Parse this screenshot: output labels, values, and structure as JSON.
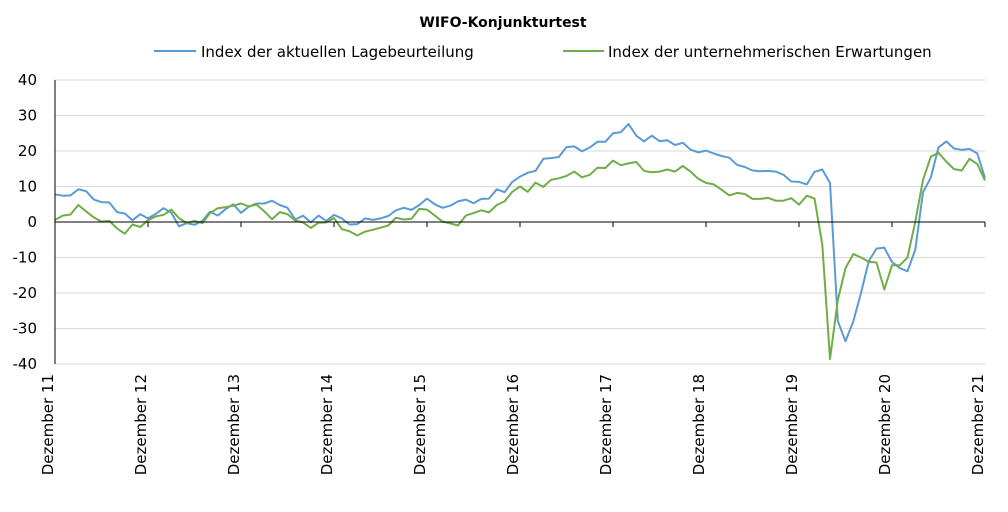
{
  "chart_data": {
    "type": "line",
    "title": "WIFO-Konjunkturtest",
    "xlabel": "",
    "ylabel": "",
    "ylim": [
      -40,
      40
    ],
    "yticks": [
      40,
      30,
      20,
      10,
      0,
      -10,
      -20,
      -30,
      -40
    ],
    "grid": true,
    "legend_position": "top",
    "x_tick_labels": [
      "Dezember 11",
      "Dezember 12",
      "Dezember 13",
      "Dezember 14",
      "Dezember 15",
      "Dezember 16",
      "Dezember 17",
      "Dezember 18",
      "Dezember 19",
      "Dezember 20",
      "Dezember 21"
    ],
    "colors": {
      "lage": "#5b9bd5",
      "erwartungen": "#70ad47",
      "grid": "#d9d9d9",
      "axis": "#000000"
    },
    "series": [
      {
        "name": "Index der aktuellen Lagebeurteilung",
        "values": [
          7.8,
          7.4,
          7.5,
          9.2,
          8.7,
          6.3,
          5.6,
          5.5,
          2.8,
          2.4,
          0.5,
          2.2,
          1.0,
          2.3,
          3.9,
          2.6,
          -1.2,
          -0.3,
          -0.8,
          0.3,
          2.9,
          1.8,
          3.6,
          5.0,
          2.6,
          4.3,
          5.2,
          5.2,
          6.0,
          4.8,
          4.0,
          0.7,
          1.8,
          -0.1,
          1.8,
          0.3,
          2.0,
          1.0,
          -0.7,
          -0.6,
          1.0,
          0.6,
          1.0,
          1.7,
          3.3,
          4.0,
          3.4,
          4.8,
          6.6,
          5.0,
          4.0,
          4.6,
          5.8,
          6.3,
          5.3,
          6.5,
          6.6,
          9.2,
          8.4,
          11.3,
          12.8,
          13.9,
          14.4,
          17.8,
          18.0,
          18.3,
          21.1,
          21.3,
          19.9,
          21.0,
          22.6,
          22.6,
          25.0,
          25.3,
          27.6,
          24.3,
          22.7,
          24.3,
          22.8,
          23.0,
          21.7,
          22.3,
          20.4,
          19.6,
          20.1,
          19.3,
          18.6,
          18.1,
          16.1,
          15.5,
          14.5,
          14.3,
          14.4,
          14.2,
          13.3,
          11.4,
          11.3,
          10.6,
          14.1,
          14.8,
          11.0,
          -27.9,
          -33.6,
          -28.0,
          -20.0,
          -11.0,
          -7.5,
          -7.2,
          -11.3,
          -13.0,
          -13.9,
          -7.8,
          8.4,
          12.5,
          21.0,
          22.7,
          20.7,
          20.3,
          20.6,
          19.3,
          12.4
        ]
      },
      {
        "name": "Index der unternehmerischen Erwartungen",
        "values": [
          0.6,
          1.8,
          2.1,
          4.8,
          3.0,
          1.3,
          0.1,
          0.3,
          -1.8,
          -3.3,
          -0.7,
          -1.4,
          0.5,
          1.6,
          2.0,
          3.5,
          1.1,
          -0.3,
          0.3,
          -0.3,
          2.5,
          3.9,
          4.2,
          4.6,
          5.2,
          4.4,
          4.9,
          3.0,
          0.8,
          2.8,
          2.2,
          0.4,
          -0.1,
          -1.7,
          -0.2,
          -0.1,
          1.1,
          -2.0,
          -2.6,
          -3.8,
          -2.7,
          -2.2,
          -1.6,
          -1.0,
          1.2,
          0.7,
          0.9,
          3.7,
          3.5,
          1.8,
          0.1,
          -0.4,
          -1.0,
          1.8,
          2.5,
          3.3,
          2.7,
          4.8,
          5.8,
          8.5,
          10.0,
          8.5,
          11.1,
          9.9,
          11.9,
          12.3,
          13.0,
          14.2,
          12.6,
          13.3,
          15.3,
          15.2,
          17.3,
          16.0,
          16.5,
          16.9,
          14.4,
          14.0,
          14.2,
          14.8,
          14.2,
          15.8,
          14.2,
          12.2,
          11.0,
          10.6,
          9.1,
          7.5,
          8.2,
          7.9,
          6.5,
          6.5,
          6.8,
          6.0,
          6.0,
          6.7,
          4.9,
          7.4,
          6.6,
          -6.4,
          -38.6,
          -22.0,
          -13.0,
          -9.0,
          -10.0,
          -11.2,
          -11.4,
          -19.0,
          -12.2,
          -12.2,
          -10.0,
          0.1,
          11.8,
          18.4,
          19.5,
          17.0,
          14.9,
          14.5,
          17.8,
          16.3,
          11.7
        ]
      }
    ]
  }
}
